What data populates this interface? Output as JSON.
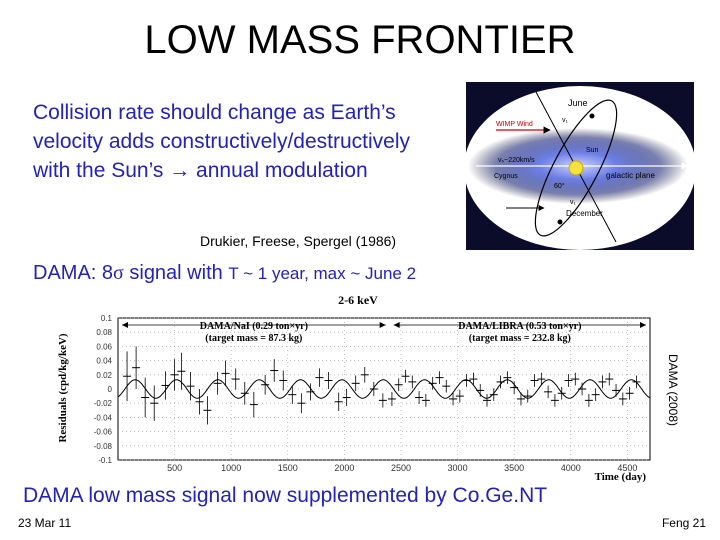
{
  "slide": {
    "title": "LOW MASS FRONTIER",
    "intro": "Collision rate should change as Earth’s velocity adds constructively/destructively with the Sun’s → annual modulation",
    "citation": "Drukier, Freese, Spergel (1986)",
    "dama_line": {
      "prefix": "DAMA: 8",
      "sigma": "σ",
      "middle": " signal with ",
      "small": "T ~ 1 year, max ~ June 2"
    },
    "plot_source": "DAMA (2008)",
    "bottom_note": "DAMA low mass signal now supplemented by Co.Ge.NT",
    "date": "23 Mar 11",
    "page": "Feng  21"
  },
  "diagram": {
    "labels": {
      "june": "June",
      "v1_top": "v₁",
      "wimp_wind": "WIMP Wind",
      "sun": "Sun",
      "vs": "vₛ~220km/s",
      "cygnus": "Cygnus",
      "angle": "60°",
      "galactic_plane": "galactic plane",
      "v1_bottom": "v₁",
      "december": "December"
    },
    "colors": {
      "background": "#0b0b2a",
      "glow": "#6d7fe6",
      "sun": "#f4e23a"
    }
  },
  "chart_data": {
    "type": "scatter",
    "title": "2-6 keV",
    "xlabel": "Time (day)",
    "ylabel": "Residuals (cpd/kg/keV)",
    "xlim": [
      0,
      4700
    ],
    "ylim": [
      -0.1,
      0.1
    ],
    "x_ticks": [
      "500",
      "1000",
      "1500",
      "2000",
      "2500",
      "3000",
      "3500",
      "4000",
      "4500"
    ],
    "y_ticks": [
      "0.1",
      "0.08",
      "0.06",
      "0.04",
      "0.02",
      "0",
      "-0.02",
      "-0.04",
      "-0.06",
      "-0.08",
      "-0.1"
    ],
    "annotations": [
      {
        "name": "nai",
        "line1": "DAMA/NaI (0.29 ton×yr)",
        "line2": "(target mass = 87.3 kg)",
        "x_from": 0,
        "x_to": 2400
      },
      {
        "name": "libra",
        "line1": "DAMA/LIBRA (0.53 ton×yr)",
        "line2": "(target mass = 232.8 kg)",
        "x_from": 2400,
        "x_to": 4700
      }
    ],
    "model": {
      "amplitude": 0.013,
      "period_days": 365.25,
      "phase_day": 152
    },
    "series": [
      {
        "x": [
          80,
          160,
          240,
          320,
          420,
          500,
          560,
          640,
          720,
          790,
          880,
          950,
          1040,
          1120,
          1200,
          1300,
          1380,
          1460,
          1540,
          1620,
          1700,
          1780,
          1860,
          1950,
          2020,
          2100,
          2180,
          2260,
          2340,
          2420,
          2480,
          2540,
          2600,
          2660,
          2720,
          2780,
          2840,
          2900,
          2960,
          3020,
          3080,
          3140,
          3200,
          3260,
          3320,
          3380,
          3440,
          3500,
          3560,
          3620,
          3680,
          3740,
          3800,
          3860,
          3920,
          3980,
          4040,
          4100,
          4160,
          4220,
          4280,
          4340,
          4400,
          4460,
          4520,
          4580
        ],
        "y": [
          0.018,
          0.03,
          -0.012,
          -0.02,
          0.005,
          0.02,
          0.025,
          0.004,
          -0.018,
          -0.03,
          0.008,
          0.022,
          0.014,
          -0.006,
          -0.022,
          0.006,
          0.026,
          0.012,
          -0.008,
          -0.02,
          -0.004,
          0.016,
          0.012,
          -0.018,
          -0.012,
          0.008,
          0.02,
          0.0,
          -0.016,
          -0.014,
          0.006,
          0.018,
          0.01,
          -0.012,
          -0.016,
          0.008,
          0.016,
          0.004,
          -0.014,
          -0.01,
          0.012,
          0.014,
          -0.002,
          -0.016,
          -0.008,
          0.01,
          0.016,
          0.002,
          -0.014,
          -0.01,
          0.012,
          0.014,
          -0.004,
          -0.016,
          -0.006,
          0.012,
          0.014,
          0.0,
          -0.016,
          -0.008,
          0.01,
          0.014,
          -0.002,
          -0.014,
          -0.006,
          0.01
        ],
        "err": [
          0.035,
          0.03,
          0.028,
          0.025,
          0.02,
          0.022,
          0.026,
          0.02,
          0.018,
          0.02,
          0.016,
          0.018,
          0.015,
          0.016,
          0.018,
          0.014,
          0.016,
          0.014,
          0.013,
          0.014,
          0.012,
          0.013,
          0.012,
          0.013,
          0.012,
          0.011,
          0.011,
          0.01,
          0.01,
          0.01,
          0.009,
          0.009,
          0.009,
          0.009,
          0.009,
          0.009,
          0.009,
          0.009,
          0.009,
          0.009,
          0.009,
          0.009,
          0.009,
          0.009,
          0.009,
          0.009,
          0.009,
          0.009,
          0.009,
          0.009,
          0.009,
          0.009,
          0.009,
          0.009,
          0.009,
          0.009,
          0.009,
          0.009,
          0.009,
          0.009,
          0.009,
          0.009,
          0.009,
          0.009,
          0.009,
          0.009
        ]
      }
    ]
  }
}
